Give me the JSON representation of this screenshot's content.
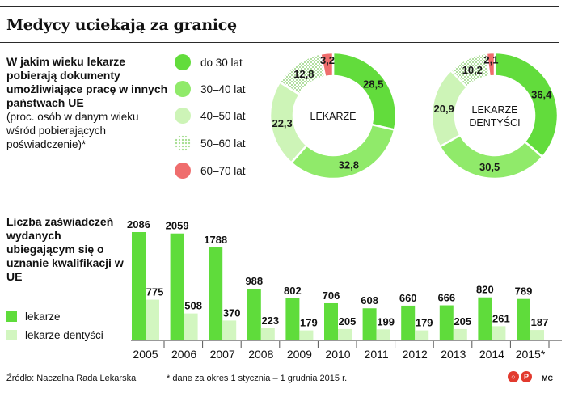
{
  "title": "Medycy uciekają za granicę",
  "donut_section": {
    "question": "W jakim wieku lekarze pobierają dokumenty umożliwiające pracę w innych państwach UE",
    "note": "(proc. osób w danym wieku wśród pobierających poświadczenie)*",
    "legend": [
      {
        "label": "do 30 lat",
        "color": "#62dc3c",
        "pattern": "solid"
      },
      {
        "label": "30–40 lat",
        "color": "#90ea6a",
        "pattern": "solid"
      },
      {
        "label": "40–50 lat",
        "color": "#cdf4b7",
        "pattern": "solid"
      },
      {
        "label": "50–60 lat",
        "color": "#a9df95",
        "pattern": "dotted"
      },
      {
        "label": "60–70 lat",
        "color": "#ef6d6d",
        "pattern": "solid"
      }
    ]
  },
  "bar_section": {
    "title": "Liczba zaświadczeń wydanych ubiegającym się o uznanie kwalifikacji w UE",
    "legend": [
      {
        "label": "lekarze",
        "color": "#5fdc3b"
      },
      {
        "label": "lekarze dentyści",
        "color": "#d2f6c0"
      }
    ]
  },
  "chart_data": [
    {
      "type": "pie",
      "center_label": "LEKARZE",
      "categories": [
        "do 30 lat",
        "30–40 lat",
        "40–50 lat",
        "50–60 lat",
        "60–70 lat"
      ],
      "values": [
        28.5,
        32.8,
        22.3,
        12.8,
        3.2
      ],
      "value_labels": [
        "28,5",
        "32,8",
        "22,3",
        "12,8",
        "3,2"
      ]
    },
    {
      "type": "pie",
      "center_label": "LEKARZE DENTYŚCI",
      "categories": [
        "do 30 lat",
        "30–40 lat",
        "40–50 lat",
        "50–60 lat",
        "60–70 lat"
      ],
      "values": [
        36.4,
        30.5,
        20.9,
        10.2,
        2.1
      ],
      "value_labels": [
        "36,4",
        "30,5",
        "20,9",
        "10,2",
        "2,1"
      ]
    },
    {
      "type": "bar",
      "categories": [
        "2005",
        "2006",
        "2007",
        "2008",
        "2009",
        "2010",
        "2011",
        "2012",
        "2013",
        "2014",
        "2015*"
      ],
      "series": [
        {
          "name": "lekarze",
          "values": [
            2086,
            2059,
            1788,
            988,
            802,
            706,
            608,
            660,
            666,
            820,
            789
          ]
        },
        {
          "name": "lekarze dentyści",
          "values": [
            775,
            508,
            370,
            223,
            179,
            205,
            199,
            179,
            205,
            261,
            187
          ]
        }
      ]
    }
  ],
  "footer": {
    "source": "Źródło: Naczelna Rada Lekarska",
    "footnote": "* dane za okres 1 stycznia – 1 grudnia 2015 r.",
    "logo_text": "P",
    "credit": "MC"
  }
}
